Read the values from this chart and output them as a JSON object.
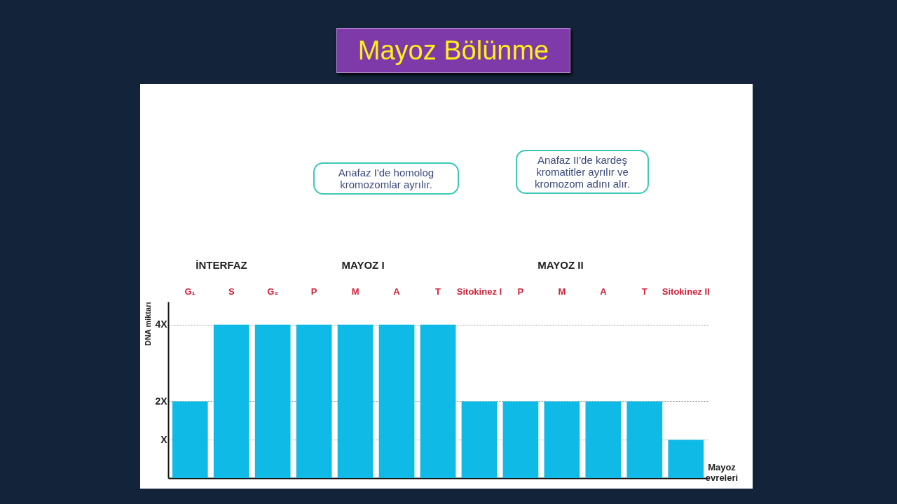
{
  "chart_data": {
    "type": "bar",
    "title": "Mayoz Bölünme",
    "xlabel": "Mayoz evreleri",
    "ylabel": "DNA miktarı",
    "categories": [
      "G₁",
      "S",
      "G₂",
      "P",
      "M",
      "A",
      "T",
      "Sitokinez I",
      "P",
      "M",
      "A",
      "T",
      "Sitokinez II"
    ],
    "values": [
      2,
      4,
      4,
      4,
      4,
      4,
      4,
      2,
      2,
      2,
      2,
      2,
      1
    ],
    "color": "#10bae6",
    "ylim": [
      0,
      4.6
    ],
    "yticks": [
      {
        "value": 1,
        "label": "X"
      },
      {
        "value": 2,
        "label": "2X"
      },
      {
        "value": 4,
        "label": "4X"
      }
    ],
    "grid": "y",
    "annotations": [
      "Anafaz I'de homolog kromozomlar ayrılır.",
      "Anafaz II'de kardeş kromatitler ayrılır ve kromozom adını alır.",
      "İNTERFAZ",
      "MAYOZ I",
      "MAYOZ II"
    ]
  }
}
